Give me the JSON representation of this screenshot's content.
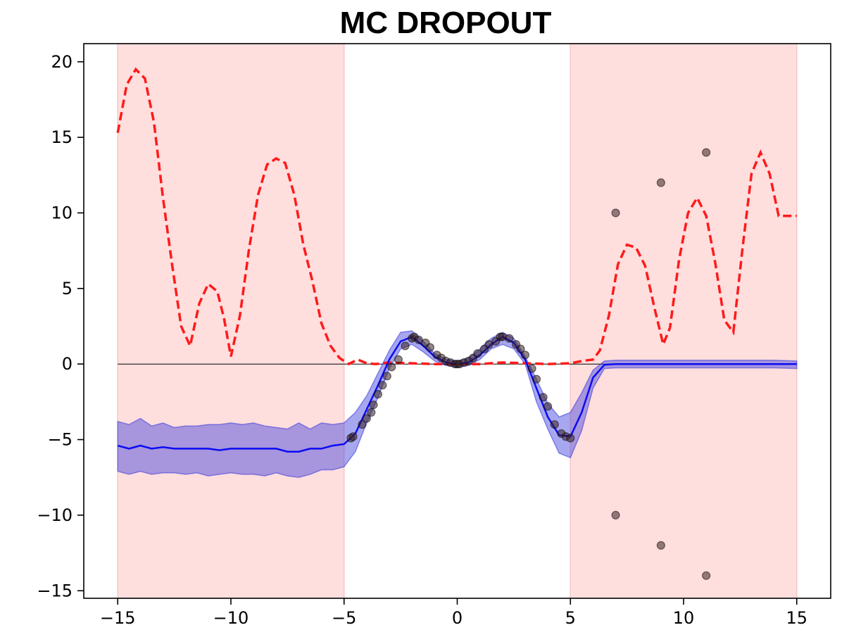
{
  "chart_data": {
    "type": "line",
    "title": "MC  DROPOUT",
    "xlabel": "",
    "ylabel": "",
    "xlim": [
      -16.5,
      16.5
    ],
    "ylim": [
      -15.5,
      21.2
    ],
    "xticks": [
      -15,
      -10,
      -5,
      0,
      5,
      10,
      15
    ],
    "yticks": [
      -15,
      -10,
      -5,
      0,
      5,
      10,
      15,
      20
    ],
    "xtick_labels": [
      "−15",
      "−10",
      "−5",
      "0",
      "5",
      "10",
      "15"
    ],
    "ytick_labels": [
      "−15",
      "−10",
      "−5",
      "0",
      "5",
      "10",
      "15",
      "20"
    ],
    "grid": false,
    "legend": "none",
    "shaded_regions": [
      {
        "x": [
          -15,
          -5
        ],
        "color": "#ffdede"
      },
      {
        "x": [
          5,
          15
        ],
        "color": "#ffdede"
      }
    ],
    "reference_line": {
      "y": 0,
      "x": [
        -15,
        15
      ],
      "color": "#000000"
    },
    "series": [
      {
        "kind": "band",
        "color": "#3b3bdc",
        "x": [
          -15,
          -14.5,
          -14,
          -13.5,
          -13,
          -12.5,
          -12,
          -11.5,
          -11,
          -10.5,
          -10,
          -9.5,
          -9,
          -8.5,
          -8,
          -7.5,
          -7,
          -6.5,
          -6,
          -5.5,
          -5,
          -4.5,
          -4,
          -3.5,
          -3,
          -2.5,
          -2,
          -1.5,
          -1,
          -0.5,
          0,
          0.5,
          1,
          1.5,
          2,
          2.5,
          3,
          3.5,
          4,
          4.5,
          5,
          5.5,
          6,
          6.5,
          7,
          8,
          9,
          10,
          11,
          12,
          13,
          14,
          15
        ],
        "lower": [
          -7.1,
          -7.3,
          -7.1,
          -7.3,
          -7.2,
          -7.2,
          -7.3,
          -7.2,
          -7.4,
          -7.3,
          -7.2,
          -7.3,
          -7.3,
          -7.4,
          -7.2,
          -7.4,
          -7.5,
          -7.3,
          -7.0,
          -7.0,
          -6.8,
          -5.8,
          -3.9,
          -2.2,
          -0.3,
          1.0,
          1.3,
          0.8,
          0.2,
          -0.1,
          -0.2,
          -0.1,
          0.3,
          1.0,
          1.3,
          1.0,
          0.0,
          -2.5,
          -4.3,
          -5.9,
          -6.2,
          -4.4,
          -1.6,
          -0.3,
          -0.25,
          -0.25,
          -0.25,
          -0.25,
          -0.25,
          -0.25,
          -0.25,
          -0.25,
          -0.3
        ],
        "upper": [
          -3.8,
          -4.0,
          -3.6,
          -4.1,
          -3.9,
          -4.2,
          -4.1,
          -4.1,
          -4.0,
          -4.0,
          -3.9,
          -4.0,
          -3.9,
          -4.1,
          -4.2,
          -4.3,
          -3.9,
          -4.3,
          -3.9,
          -4.0,
          -3.9,
          -3.2,
          -2.1,
          -0.6,
          0.9,
          2.1,
          2.2,
          1.5,
          0.7,
          0.3,
          0.2,
          0.4,
          1.0,
          1.7,
          2.1,
          1.7,
          0.5,
          -1.0,
          -2.6,
          -3.5,
          -3.2,
          -1.9,
          -0.4,
          0.2,
          0.25,
          0.25,
          0.25,
          0.25,
          0.25,
          0.25,
          0.25,
          0.25,
          0.2
        ]
      },
      {
        "kind": "mean",
        "color": "#0b0bf5",
        "x": [
          -15,
          -14.5,
          -14,
          -13.5,
          -13,
          -12.5,
          -12,
          -11.5,
          -11,
          -10.5,
          -10,
          -9.5,
          -9,
          -8.5,
          -8,
          -7.5,
          -7,
          -6.5,
          -6,
          -5.5,
          -5,
          -4.5,
          -4,
          -3.5,
          -3,
          -2.5,
          -2,
          -1.5,
          -1,
          -0.5,
          0,
          0.5,
          1,
          1.5,
          2,
          2.5,
          3,
          3.5,
          4,
          4.5,
          5,
          5.5,
          6,
          6.5,
          7,
          8,
          9,
          10,
          11,
          12,
          13,
          14,
          15
        ],
        "y": [
          -5.4,
          -5.6,
          -5.4,
          -5.6,
          -5.5,
          -5.6,
          -5.6,
          -5.6,
          -5.6,
          -5.7,
          -5.6,
          -5.6,
          -5.6,
          -5.6,
          -5.6,
          -5.8,
          -5.8,
          -5.6,
          -5.6,
          -5.4,
          -5.3,
          -4.6,
          -3.0,
          -1.4,
          0.3,
          1.5,
          1.8,
          1.2,
          0.5,
          0.1,
          0.0,
          0.1,
          0.6,
          1.3,
          1.8,
          1.4,
          0.3,
          -1.6,
          -3.5,
          -4.7,
          -4.8,
          -3.2,
          -0.9,
          -0.05,
          0.0,
          0.0,
          0.0,
          0.0,
          0.0,
          0.0,
          0.0,
          0.0,
          0.0
        ]
      },
      {
        "kind": "dashed",
        "color": "#ff1a1a",
        "x": [
          -15,
          -14.6,
          -14.2,
          -13.8,
          -13.4,
          -13,
          -12.6,
          -12.2,
          -11.8,
          -11.4,
          -11,
          -10.6,
          -10.3,
          -10,
          -9.6,
          -9.2,
          -8.8,
          -8.4,
          -8,
          -7.6,
          -7.2,
          -6.8,
          -6.4,
          -6,
          -5.6,
          -5.2,
          -4.8,
          -4.4,
          -4,
          -3.6,
          -3,
          -2,
          -1,
          0,
          1,
          2,
          3,
          4,
          5,
          5.5,
          6,
          6.3,
          6.7,
          7.1,
          7.5,
          7.9,
          8.3,
          8.7,
          9.1,
          9.4,
          9.8,
          10.2,
          10.6,
          11,
          11.4,
          11.8,
          12.2,
          12.6,
          13,
          13.4,
          13.8,
          14.2,
          14.6,
          15
        ],
        "y": [
          15.3,
          18.5,
          19.5,
          18.9,
          16.0,
          11.0,
          6.6,
          2.5,
          1.2,
          4.0,
          5.3,
          4.8,
          3.0,
          0.5,
          3.2,
          7.6,
          11.2,
          13.2,
          13.6,
          13.3,
          11.2,
          7.9,
          5.5,
          2.7,
          1.2,
          0.4,
          0.0,
          0.3,
          0.05,
          0.0,
          0.1,
          0.05,
          0.0,
          0.0,
          0.0,
          0.1,
          0.05,
          0.0,
          0.05,
          0.2,
          0.3,
          0.9,
          3.2,
          6.6,
          7.9,
          7.7,
          6.5,
          3.8,
          1.3,
          2.4,
          6.9,
          10.0,
          11.0,
          9.8,
          6.7,
          2.9,
          2.1,
          7.6,
          12.6,
          14.0,
          12.6,
          9.8,
          9.8,
          9.8
        ],
        "y_clip_note": ""
      },
      {
        "kind": "points",
        "color": "#000000",
        "x": [
          -4.7,
          -4.6,
          -4.2,
          -4.0,
          -3.8,
          -3.7,
          -3.5,
          -3.3,
          -3.1,
          -2.9,
          -2.6,
          -2.3,
          -2.0,
          -1.9,
          -1.7,
          -1.4,
          -1.2,
          -0.9,
          -0.7,
          -0.5,
          -0.3,
          -0.1,
          0.0,
          0.1,
          0.3,
          0.5,
          0.7,
          0.9,
          1.2,
          1.4,
          1.7,
          1.9,
          2.0,
          2.3,
          2.6,
          2.8,
          3.0,
          3.3,
          3.5,
          3.8,
          4.0,
          4.3,
          4.6,
          4.8,
          5.0,
          7.0,
          9.0,
          11.0,
          7.0,
          9.0,
          11.0
        ],
        "y": [
          -4.9,
          -4.8,
          -4.0,
          -3.6,
          -3.2,
          -2.7,
          -2.0,
          -1.4,
          -0.8,
          -0.2,
          0.3,
          1.2,
          1.7,
          1.8,
          1.6,
          1.4,
          1.1,
          0.6,
          0.4,
          0.2,
          0.1,
          0.0,
          0.0,
          0.0,
          0.1,
          0.2,
          0.4,
          0.7,
          1.0,
          1.3,
          1.5,
          1.8,
          1.8,
          1.7,
          1.3,
          1.0,
          0.6,
          -0.3,
          -1.0,
          -2.2,
          -2.8,
          -4.0,
          -4.6,
          -4.8,
          -4.9,
          10.0,
          12.0,
          14.0,
          -10.0,
          -12.0,
          -14.0
        ]
      }
    ]
  }
}
